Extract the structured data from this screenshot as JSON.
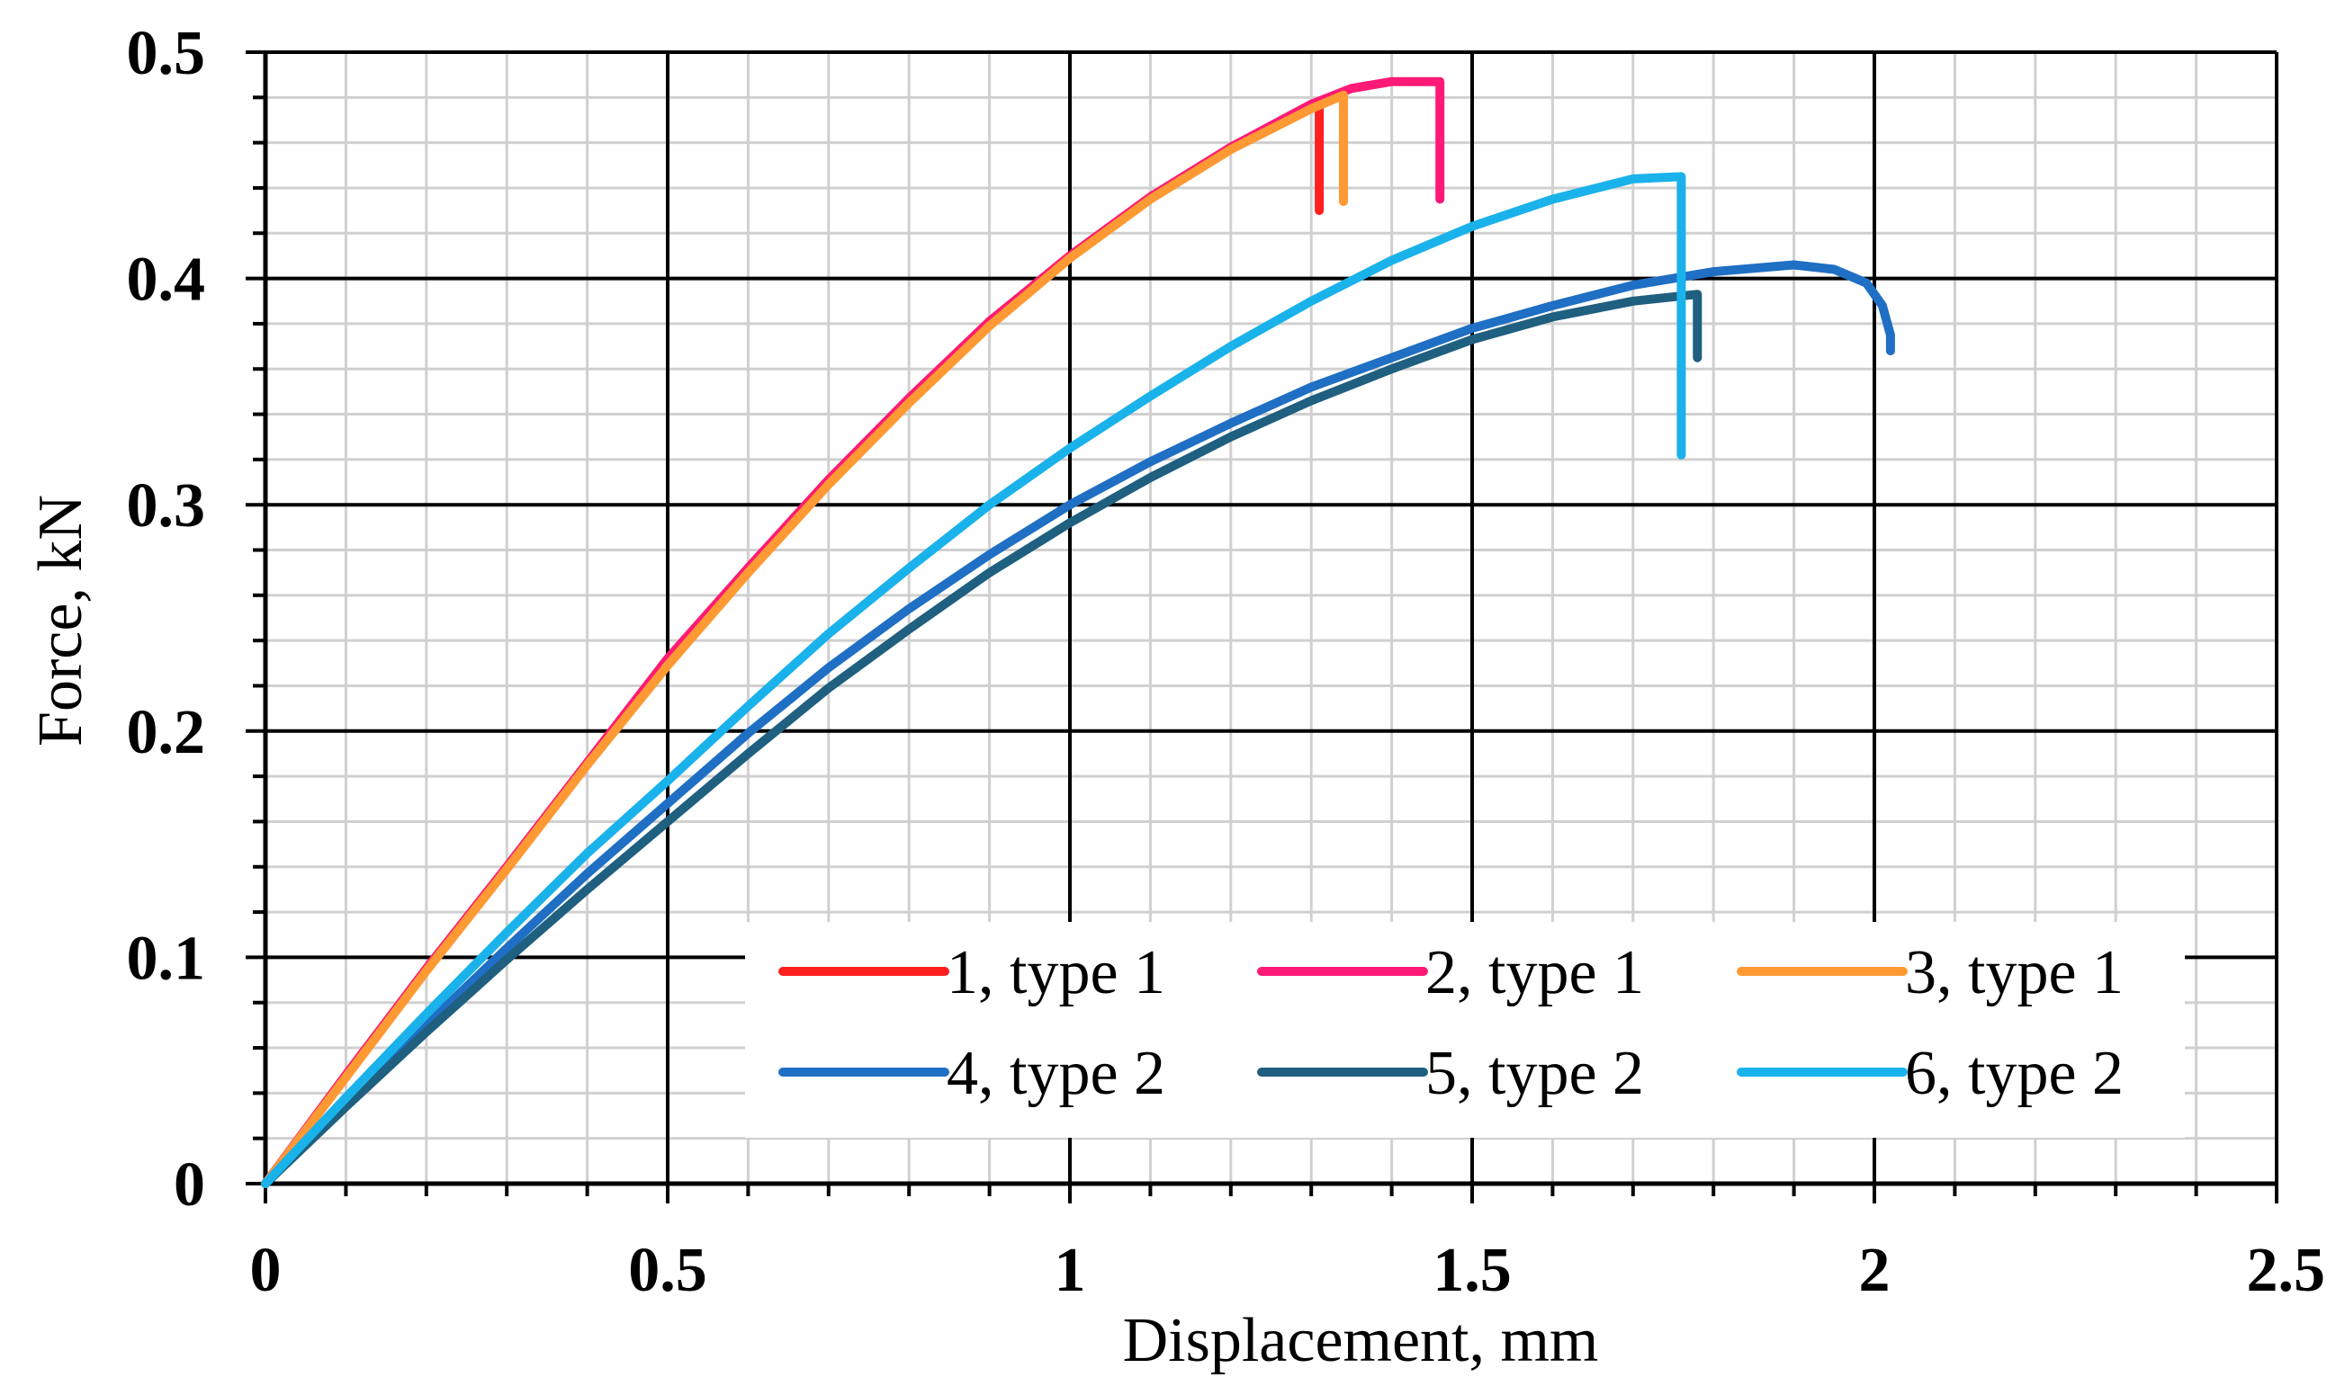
{
  "chart_data": {
    "type": "line",
    "title": "",
    "xlabel": "Displacement, mm",
    "ylabel": "Force, kN",
    "xlim": [
      0,
      2.5
    ],
    "ylim": [
      0,
      0.5
    ],
    "x_major_step": 0.5,
    "y_major_step": 0.1,
    "x_minor_step": 0.1,
    "y_minor_step": 0.02,
    "grid": true,
    "legend_position": "bottom-right",
    "x_tick_labels": [
      "0",
      "0.5",
      "1",
      "1.5",
      "2",
      "2.5"
    ],
    "y_tick_labels": [
      "0",
      "0.1",
      "0.2",
      "0.3",
      "0.4",
      "0.5"
    ],
    "series": [
      {
        "name": "1, type 1",
        "color": "#ff1f1f",
        "points": [
          [
            0,
            0
          ],
          [
            0.1,
            0.048
          ],
          [
            0.2,
            0.095
          ],
          [
            0.3,
            0.14
          ],
          [
            0.4,
            0.186
          ],
          [
            0.5,
            0.232
          ],
          [
            0.6,
            0.272
          ],
          [
            0.7,
            0.311
          ],
          [
            0.8,
            0.347
          ],
          [
            0.9,
            0.381
          ],
          [
            1.0,
            0.41
          ],
          [
            1.1,
            0.436
          ],
          [
            1.2,
            0.458
          ],
          [
            1.3,
            0.476
          ],
          [
            1.31,
            0.477
          ],
          [
            1.31,
            0.43
          ]
        ]
      },
      {
        "name": "2, type 1",
        "color": "#ff1a75",
        "points": [
          [
            0,
            0
          ],
          [
            0.1,
            0.048
          ],
          [
            0.2,
            0.095
          ],
          [
            0.3,
            0.14
          ],
          [
            0.4,
            0.186
          ],
          [
            0.5,
            0.232
          ],
          [
            0.6,
            0.272
          ],
          [
            0.7,
            0.311
          ],
          [
            0.8,
            0.347
          ],
          [
            0.9,
            0.381
          ],
          [
            1.0,
            0.41
          ],
          [
            1.1,
            0.436
          ],
          [
            1.2,
            0.458
          ],
          [
            1.3,
            0.477
          ],
          [
            1.35,
            0.484
          ],
          [
            1.4,
            0.487
          ],
          [
            1.46,
            0.487
          ],
          [
            1.46,
            0.435
          ]
        ]
      },
      {
        "name": "3, type 1",
        "color": "#ff9933",
        "points": [
          [
            0,
            0
          ],
          [
            0.1,
            0.047
          ],
          [
            0.2,
            0.094
          ],
          [
            0.3,
            0.139
          ],
          [
            0.4,
            0.185
          ],
          [
            0.5,
            0.229
          ],
          [
            0.6,
            0.27
          ],
          [
            0.7,
            0.309
          ],
          [
            0.8,
            0.345
          ],
          [
            0.9,
            0.379
          ],
          [
            1.0,
            0.409
          ],
          [
            1.1,
            0.435
          ],
          [
            1.2,
            0.457
          ],
          [
            1.3,
            0.475
          ],
          [
            1.34,
            0.481
          ],
          [
            1.34,
            0.434
          ]
        ]
      },
      {
        "name": "4, type 2",
        "color": "#1f6fc4",
        "points": [
          [
            0,
            0
          ],
          [
            0.1,
            0.035
          ],
          [
            0.2,
            0.07
          ],
          [
            0.3,
            0.104
          ],
          [
            0.4,
            0.137
          ],
          [
            0.5,
            0.168
          ],
          [
            0.6,
            0.199
          ],
          [
            0.7,
            0.228
          ],
          [
            0.8,
            0.254
          ],
          [
            0.9,
            0.278
          ],
          [
            1.0,
            0.3
          ],
          [
            1.1,
            0.319
          ],
          [
            1.2,
            0.336
          ],
          [
            1.3,
            0.352
          ],
          [
            1.4,
            0.365
          ],
          [
            1.5,
            0.378
          ],
          [
            1.6,
            0.388
          ],
          [
            1.7,
            0.397
          ],
          [
            1.8,
            0.403
          ],
          [
            1.9,
            0.406
          ],
          [
            1.95,
            0.404
          ],
          [
            1.99,
            0.398
          ],
          [
            2.01,
            0.388
          ],
          [
            2.02,
            0.375
          ],
          [
            2.02,
            0.368
          ]
        ]
      },
      {
        "name": "5, type 2",
        "color": "#1f5f80",
        "points": [
          [
            0,
            0
          ],
          [
            0.1,
            0.034
          ],
          [
            0.2,
            0.067
          ],
          [
            0.3,
            0.099
          ],
          [
            0.4,
            0.13
          ],
          [
            0.5,
            0.16
          ],
          [
            0.6,
            0.19
          ],
          [
            0.7,
            0.219
          ],
          [
            0.8,
            0.245
          ],
          [
            0.9,
            0.27
          ],
          [
            1.0,
            0.292
          ],
          [
            1.1,
            0.312
          ],
          [
            1.2,
            0.33
          ],
          [
            1.3,
            0.346
          ],
          [
            1.4,
            0.36
          ],
          [
            1.5,
            0.373
          ],
          [
            1.6,
            0.383
          ],
          [
            1.7,
            0.39
          ],
          [
            1.78,
            0.393
          ],
          [
            1.78,
            0.365
          ]
        ]
      },
      {
        "name": "6, type 2",
        "color": "#1ab2ea",
        "points": [
          [
            0,
            0
          ],
          [
            0.1,
            0.038
          ],
          [
            0.2,
            0.075
          ],
          [
            0.3,
            0.111
          ],
          [
            0.4,
            0.146
          ],
          [
            0.5,
            0.178
          ],
          [
            0.6,
            0.211
          ],
          [
            0.7,
            0.243
          ],
          [
            0.8,
            0.272
          ],
          [
            0.9,
            0.3
          ],
          [
            1.0,
            0.325
          ],
          [
            1.1,
            0.348
          ],
          [
            1.2,
            0.37
          ],
          [
            1.3,
            0.39
          ],
          [
            1.4,
            0.408
          ],
          [
            1.5,
            0.423
          ],
          [
            1.6,
            0.435
          ],
          [
            1.7,
            0.444
          ],
          [
            1.76,
            0.445
          ],
          [
            1.76,
            0.322
          ]
        ]
      }
    ]
  }
}
